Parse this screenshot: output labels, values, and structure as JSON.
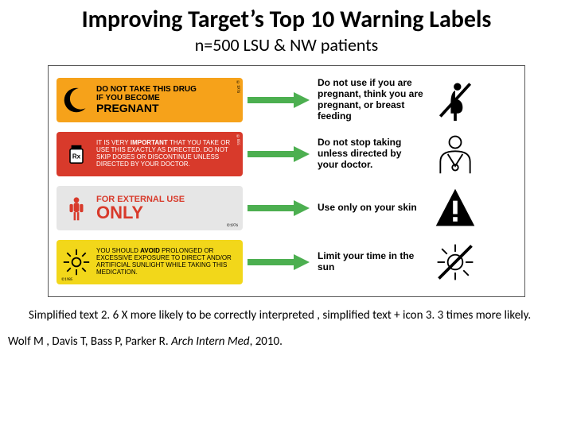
{
  "title": "Improving Target’s Top 10 Warning Labels",
  "title_fontsize": 30,
  "subtitle": "n=500 LSU & NW patients",
  "subtitle_fontsize": 22,
  "arrow_color": "#4caf50",
  "border_color": "#595959",
  "rows": [
    {
      "bg": "#f6a21a",
      "text_color": "#000000",
      "line1": "DO NOT TAKE THIS DRUG",
      "line2_pre": "IF YOU BECOME",
      "emph": "PREGNANT",
      "code": "©1976",
      "right_text": "Do not use if you are pregnant, think you are pregnant, or breast feeding"
    },
    {
      "bg": "#d83a2b",
      "text_color": "#ffffff",
      "thin1": "IT IS VERY",
      "bold_in": "IMPORTANT",
      "thin2": "THAT YOU TAKE OR USE THIS EXACTLY AS DIRECTED. DO NOT SKIP DOSES OR DISCONTINUE UNLESS DIRECTED BY YOUR DOCTOR.",
      "code": "©855",
      "right_text": "Do not stop taking unless directed by your doctor."
    },
    {
      "bg": "#e6e6e6",
      "text_color": "#d83a2b",
      "line1": "FOR EXTERNAL USE",
      "emph": "ONLY",
      "code": "©1976",
      "right_text": "Use only on your skin"
    },
    {
      "bg": "#f2d71a",
      "text_color": "#000000",
      "thin_full": "YOU SHOULD AVOID PROLONGED OR EXCESSIVE EXPOSURE TO DIRECT AND/OR ARTIFICIAL SUNLIGHT WHILE TAKING THIS MEDICATION.",
      "bold_word": "AVOID",
      "code": "©1985",
      "right_text": "Limit your time in the sun"
    }
  ],
  "caption": "Simplified text  2. 6 X more likely to be correctly  interpreted  , simplified text + icon  3. 3 times more likely.",
  "citation_authors": "Wolf M , Davis T, Bass P, Parker R. ",
  "citation_journal": "Arch Intern Med",
  "citation_tail": ", 2010."
}
